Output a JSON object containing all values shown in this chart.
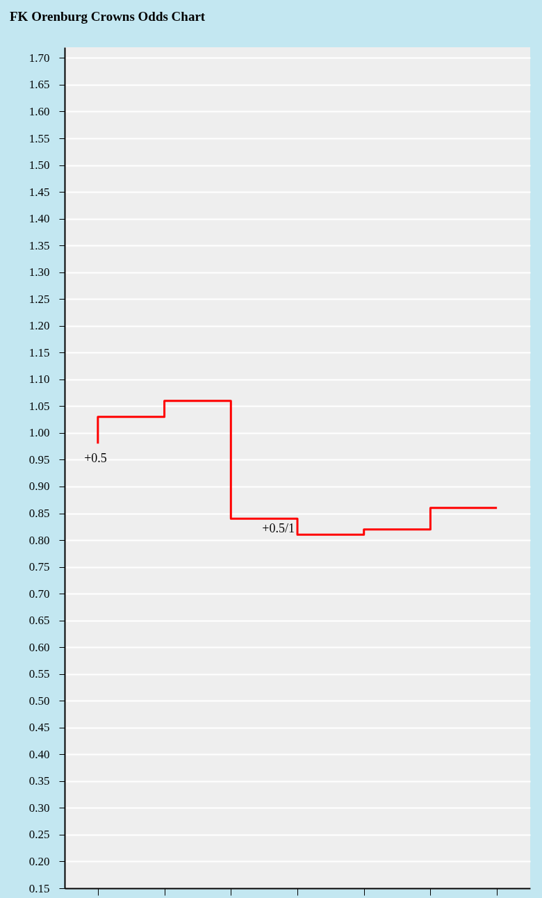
{
  "chart_data": {
    "type": "step",
    "title": "FK Orenburg Crowns Odds Chart",
    "categories": [
      null,
      null,
      null,
      null,
      null,
      null,
      null
    ],
    "series": [
      {
        "color": "#ff0000",
        "values": [
          0.98,
          1.03,
          1.06,
          0.84,
          0.81,
          0.82,
          0.86
        ]
      }
    ],
    "ylim": [
      0.15,
      1.72
    ],
    "yticks": [
      0.15,
      {
        "value": 0.2,
        "label": "0.20"
      },
      0.25,
      {
        "value": 0.3,
        "label": "0.30"
      },
      0.35,
      {
        "value": 0.4,
        "label": "0.40"
      },
      0.45,
      {
        "value": 0.5,
        "label": "0.50"
      },
      0.55,
      {
        "value": 0.6,
        "label": "0.60"
      },
      0.65,
      {
        "value": 0.7,
        "label": "0.70"
      },
      0.75,
      {
        "value": 0.8,
        "label": "0.80"
      },
      0.85,
      {
        "value": 0.9,
        "label": "0.90"
      },
      0.95,
      {
        "value": 1.0,
        "label": "1.00"
      },
      1.05,
      {
        "value": 1.1,
        "label": "1.10"
      },
      1.15,
      {
        "value": 1.2,
        "label": "1.20"
      },
      1.25,
      {
        "value": 1.3,
        "label": "1.30"
      },
      1.35,
      {
        "value": 1.4,
        "label": "1.40"
      },
      1.45,
      {
        "value": 1.5,
        "label": "1.50"
      },
      1.55,
      {
        "value": 1.6,
        "label": "1.60"
      },
      1.65,
      {
        "value": 1.7,
        "label": "1.70"
      }
    ],
    "annotations": [
      "+0.5",
      "+0.5/1"
    ],
    "grid": "y",
    "tick_labels": "y",
    "marker": "none",
    "line_style": "solid"
  }
}
